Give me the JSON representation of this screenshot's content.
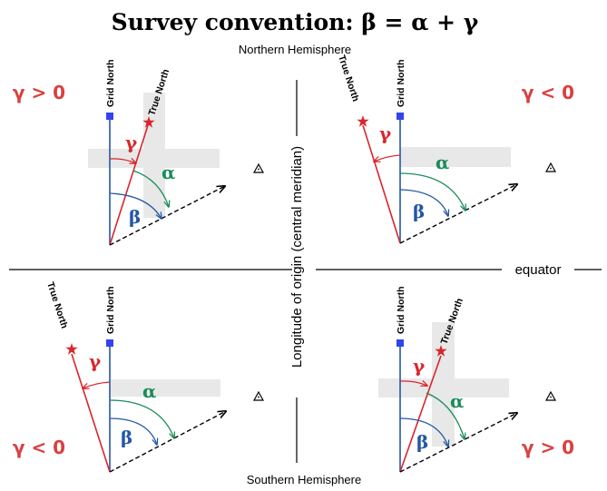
{
  "title": "Survey convention: β = α + γ",
  "hemispheres": {
    "north": "Northern Hemisphere",
    "south": "Southern Hemisphere"
  },
  "central_meridian_label": "Longitude of origin (central meridian)",
  "equator_label": "equator",
  "labels": {
    "grid_north": "Grid North",
    "true_north": "True North",
    "alpha": "α",
    "beta": "β",
    "gamma": "γ"
  },
  "quadrants": [
    {
      "id": "nw",
      "sign": "γ > 0"
    },
    {
      "id": "ne",
      "sign": "γ < 0"
    },
    {
      "id": "sw",
      "sign": "γ < 0"
    },
    {
      "id": "se",
      "sign": "γ > 0"
    }
  ],
  "colors": {
    "grid_north": "#2457a4",
    "true_north": "#d9262c",
    "alpha": "#1a8c5a",
    "beta": "#2457a4",
    "gamma": "#d9262c",
    "sign": "#d94040",
    "highlight": "#e8e8e8",
    "line": "#000000"
  },
  "icons": {
    "station": "triangle-icon",
    "grid_marker": "square-icon",
    "true_marker": "star-icon"
  }
}
